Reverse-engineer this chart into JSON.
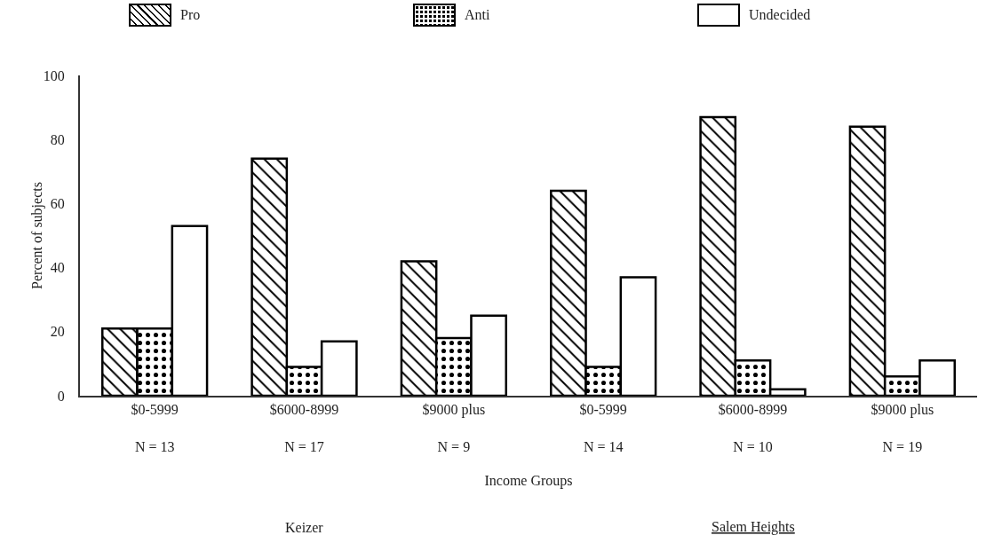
{
  "chart_data": {
    "type": "bar",
    "xlabel": "Income Groups",
    "ylabel": "Percent of subjects",
    "categories": [
      "$0-5999\nN = 13",
      "$6000-8999\nN = 17",
      "$9000 plus\nN = 9",
      "$0-5999\nN = 14",
      "$6000-8999\nN = 10",
      "$9000 plus\nN = 19"
    ],
    "series": [
      {
        "name": "Pro",
        "color": "#000000",
        "values": [
          21,
          74,
          42,
          64,
          87,
          84
        ]
      },
      {
        "name": "Anti",
        "color": "#000000",
        "values": [
          21,
          9,
          18,
          9,
          11,
          6
        ]
      },
      {
        "name": "Undecided",
        "color": "#000000",
        "values": [
          53,
          17,
          25,
          37,
          2,
          11
        ]
      }
    ],
    "ylim": [
      0,
      100
    ],
    "yticks": [
      0,
      20,
      40,
      60,
      80,
      100
    ],
    "grid": false,
    "legend": "top",
    "annotations": [
      "Keizer",
      "Salem Heights"
    ]
  }
}
